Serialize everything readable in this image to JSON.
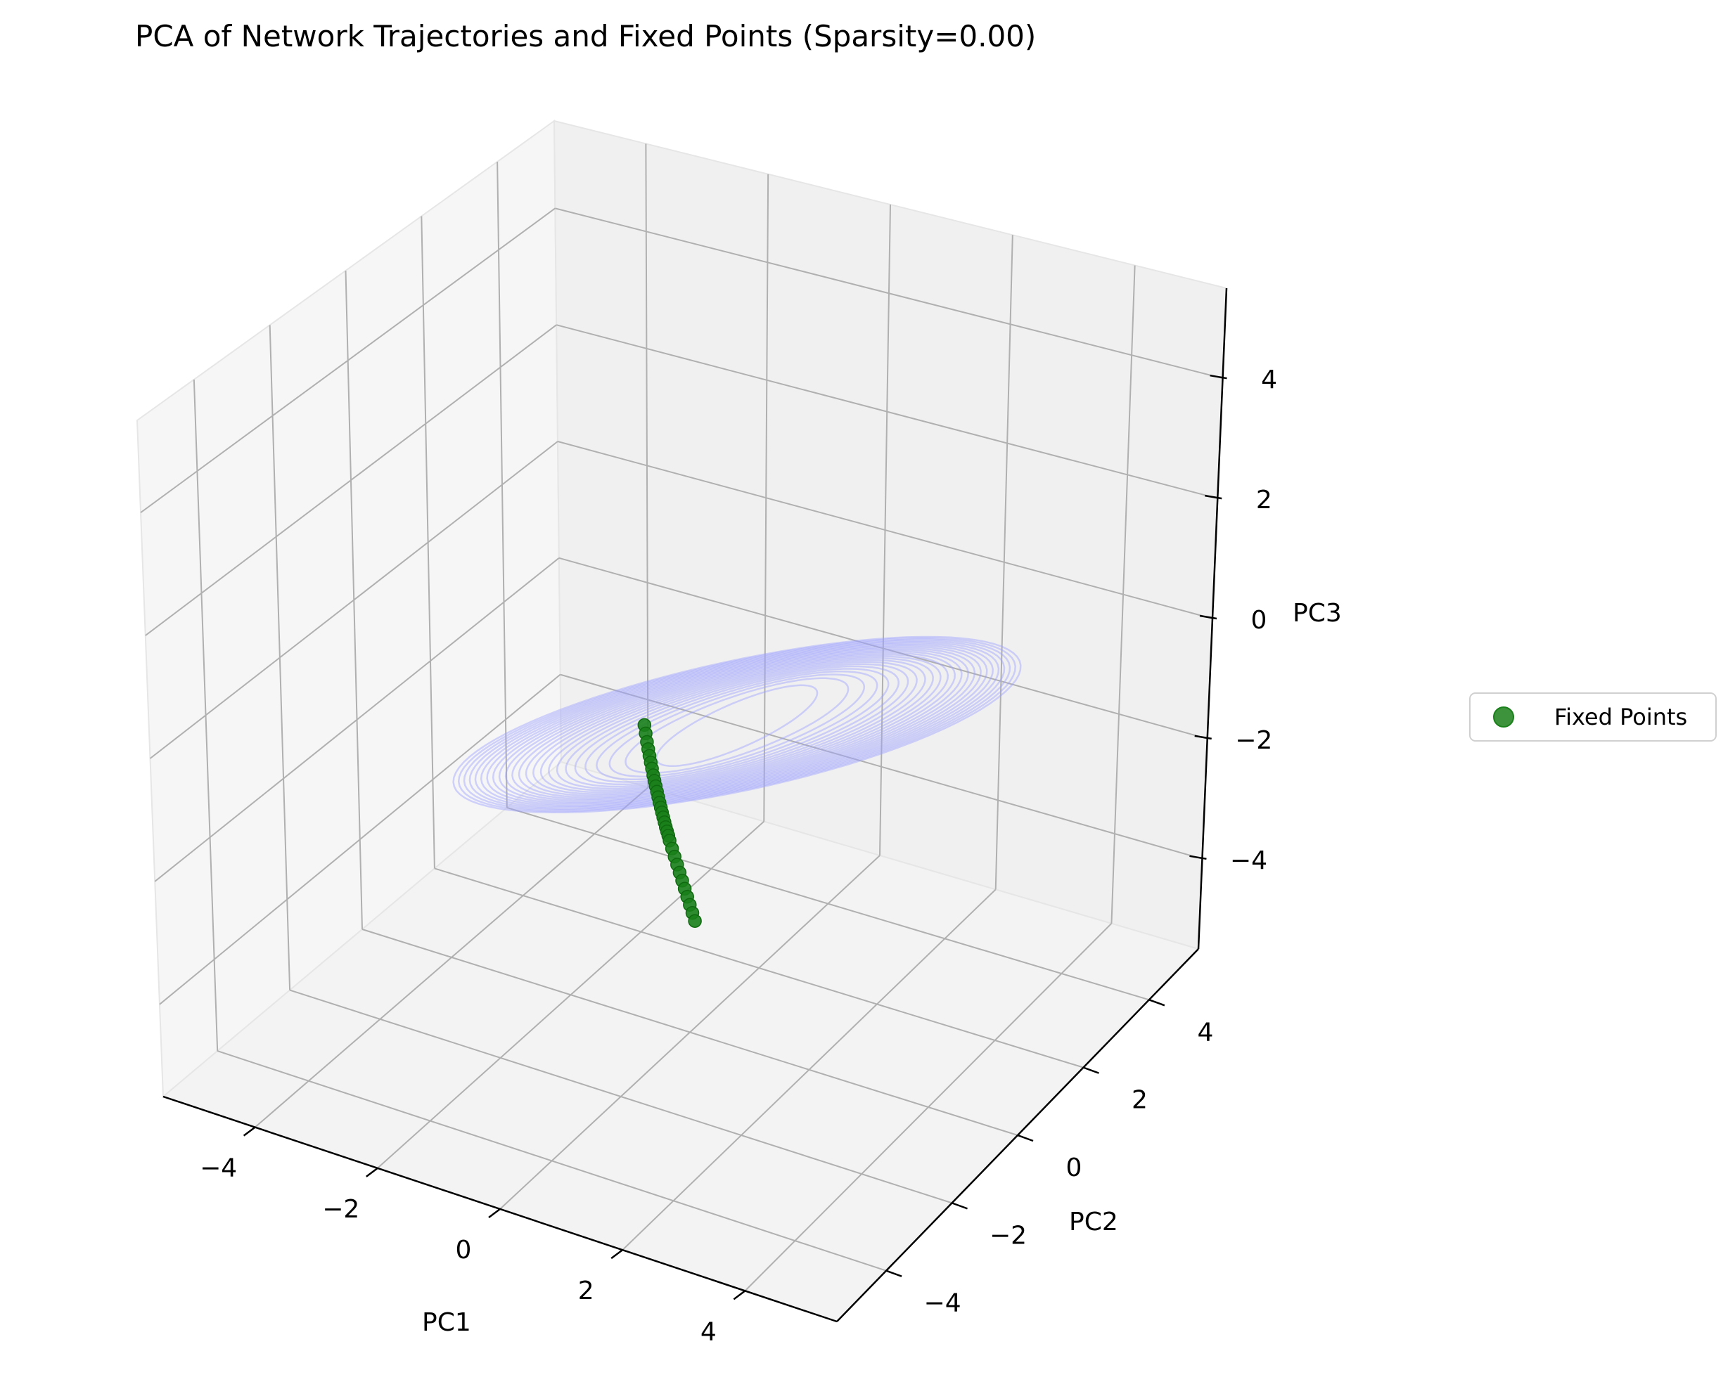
{
  "chart_data": {
    "type": "scatter",
    "projection": "3d",
    "title": "PCA of Network Trajectories and Fixed Points (Sparsity=0.00)",
    "axes": {
      "x": {
        "label": "PC1",
        "ticks": [
          -4,
          -2,
          0,
          2,
          4
        ],
        "tick_labels": [
          "−4",
          "−2",
          "0",
          "2",
          "4"
        ],
        "lim": [
          -5.5,
          5.5
        ]
      },
      "y": {
        "label": "PC2",
        "ticks": [
          -4,
          -2,
          0,
          2,
          4
        ],
        "tick_labels": [
          "−4",
          "−2",
          "0",
          "2",
          "4"
        ],
        "lim": [
          -5.5,
          5.5
        ]
      },
      "z": {
        "label": "PC3",
        "ticks": [
          -4,
          -2,
          0,
          2,
          4
        ],
        "tick_labels": [
          "−4",
          "−2",
          "0",
          "2",
          "4"
        ],
        "lim": [
          -5.5,
          5.5
        ]
      }
    },
    "grid": true,
    "legend_position": "right",
    "series": [
      {
        "kind": "trajectories",
        "color": "#9da2ff",
        "description_values": {
          "loops": 24,
          "shape": "spiral converging onto a limit cycle"
        }
      },
      {
        "name": "Fixed Points",
        "kind": "points",
        "color": "#1a801a",
        "points": [
          [
            -1.0,
            0.5,
            -1.0
          ],
          [
            -0.95,
            0.45,
            -1.1
          ],
          [
            -0.9,
            0.4,
            -1.2
          ],
          [
            -0.85,
            0.35,
            -1.28
          ],
          [
            -0.8,
            0.3,
            -1.35
          ],
          [
            -0.75,
            0.25,
            -1.42
          ],
          [
            -0.7,
            0.2,
            -1.48
          ],
          [
            -0.65,
            0.15,
            -1.55
          ],
          [
            -0.6,
            0.1,
            -1.6
          ],
          [
            -0.55,
            0.05,
            -1.65
          ],
          [
            -0.5,
            0.0,
            -1.7
          ],
          [
            -0.45,
            -0.05,
            -1.75
          ],
          [
            -0.4,
            -0.1,
            -1.8
          ],
          [
            -0.35,
            -0.15,
            -1.84
          ],
          [
            -0.3,
            -0.2,
            -1.88
          ],
          [
            -0.25,
            -0.25,
            -1.92
          ],
          [
            -0.2,
            -0.3,
            -1.96
          ],
          [
            -0.15,
            -0.35,
            -2.0
          ],
          [
            -0.1,
            -0.4,
            -2.03
          ],
          [
            -0.05,
            -0.45,
            -2.06
          ],
          [
            0.0,
            -0.5,
            -2.1
          ],
          [
            0.1,
            -0.6,
            -2.15
          ],
          [
            0.2,
            -0.7,
            -2.2
          ],
          [
            0.3,
            -0.8,
            -2.25
          ],
          [
            0.4,
            -0.9,
            -2.3
          ],
          [
            0.5,
            -1.0,
            -2.35
          ],
          [
            0.6,
            -1.1,
            -2.4
          ],
          [
            0.7,
            -1.2,
            -2.45
          ],
          [
            0.8,
            -1.3,
            -2.5
          ],
          [
            0.9,
            -1.4,
            -2.55
          ],
          [
            1.0,
            -1.5,
            -2.6
          ]
        ]
      }
    ]
  },
  "legend": {
    "label": "Fixed Points"
  }
}
